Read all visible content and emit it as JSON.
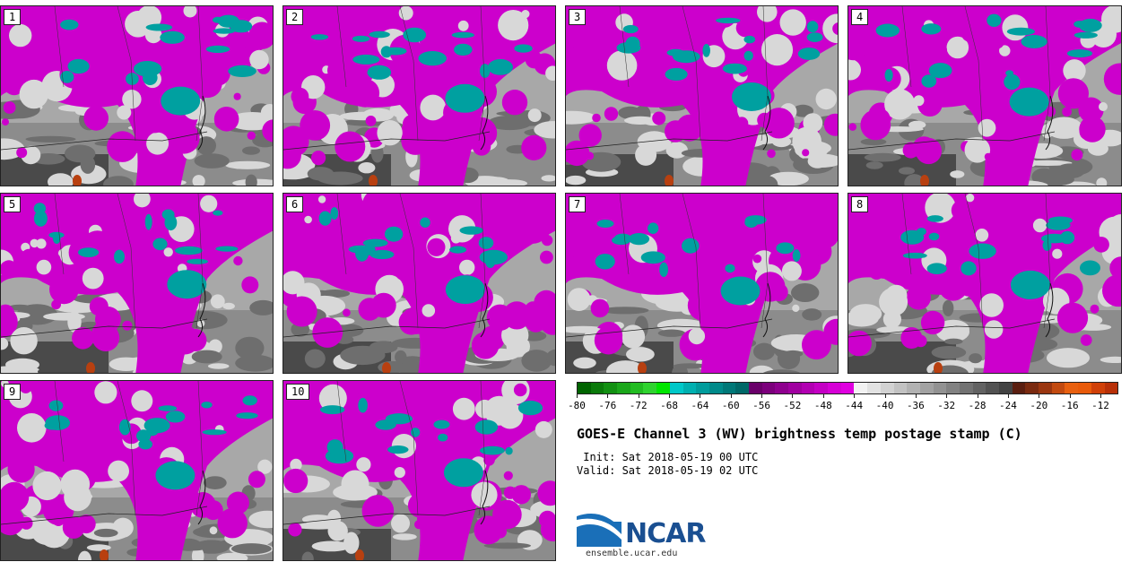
{
  "panels": [
    {
      "label": "1"
    },
    {
      "label": "2"
    },
    {
      "label": "3"
    },
    {
      "label": "4"
    },
    {
      "label": "5"
    },
    {
      "label": "6"
    },
    {
      "label": "7"
    },
    {
      "label": "8"
    },
    {
      "label": "9"
    },
    {
      "label": "10"
    }
  ],
  "colorbar": {
    "colors": [
      "#006400",
      "#0a7a0a",
      "#129012",
      "#1aa61a",
      "#22bc22",
      "#2fd32f",
      "#00e600",
      "#00c8c8",
      "#00b0b0",
      "#009c9c",
      "#008a8a",
      "#007878",
      "#006868",
      "#6a006a",
      "#7c007c",
      "#8e008e",
      "#a000a0",
      "#b200b2",
      "#c400c4",
      "#d600d6",
      "#e000e0",
      "#f2f2f2",
      "#e2e2e2",
      "#d2d2d2",
      "#c2c2c2",
      "#b2b2b2",
      "#a2a2a2",
      "#929292",
      "#828282",
      "#727272",
      "#626262",
      "#525252",
      "#424242",
      "#5a1e10",
      "#7a2a10",
      "#9a3610",
      "#c24a10",
      "#e86010",
      "#e85a0a",
      "#d04008",
      "#b83008"
    ],
    "tick_labels": [
      "-80",
      "-76",
      "-72",
      "-68",
      "-64",
      "-60",
      "-56",
      "-52",
      "-48",
      "-44",
      "-40",
      "-36",
      "-32",
      "-28",
      "-24",
      "-20",
      "-16",
      "-12"
    ]
  },
  "title": "GOES-E Channel 3 (WV) brightness temp postage stamp (C)",
  "init_line": " Init: Sat 2018-05-19 00 UTC",
  "valid_line": "Valid: Sat 2018-05-19 02 UTC",
  "logo_text": "NCAR",
  "site": "ensemble.ucar.edu",
  "field_colors": {
    "purple": "#cc00cc",
    "teal": "#00a0a0",
    "gray_light": "#d8d8d8",
    "gray_dark": "#4a4a4a",
    "brown": "#b84010"
  }
}
